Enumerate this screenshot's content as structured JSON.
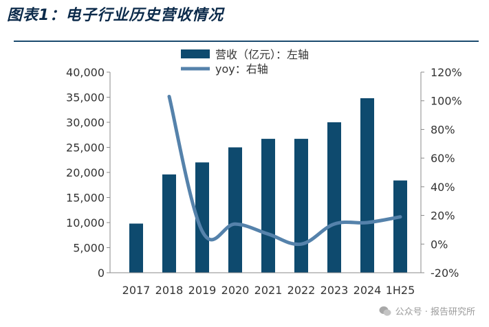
{
  "figure_title": "图表1：电子行业历史营收情况",
  "watermark": "公众号 · 报告研究所",
  "colors": {
    "bar": "#0e4a6e",
    "line": "#5582ab",
    "axis": "#888888",
    "rule": "#1a4a6e"
  },
  "chart_data": {
    "type": "bar+line",
    "categories": [
      "2017",
      "2018",
      "2019",
      "2020",
      "2021",
      "2022",
      "2023",
      "2024",
      "1H25"
    ],
    "series": [
      {
        "name": "营收（亿元）：左轴",
        "type": "bar",
        "axis": "left",
        "values": [
          9800,
          19600,
          22000,
          25000,
          26700,
          26700,
          30000,
          34800,
          18400
        ]
      },
      {
        "name": "yoy：右轴",
        "type": "line",
        "axis": "right",
        "values": [
          null,
          103,
          9,
          14,
          7,
          0,
          14,
          15,
          19
        ]
      }
    ],
    "left_axis": {
      "min": 0,
      "max": 40000,
      "step": 5000,
      "tick_labels": [
        "0",
        "5,000",
        "10,000",
        "15,000",
        "20,000",
        "25,000",
        "30,000",
        "35,000",
        "40,000"
      ]
    },
    "right_axis": {
      "min": -20,
      "max": 120,
      "step": 20,
      "tick_labels": [
        "-20%",
        "0%",
        "20%",
        "40%",
        "60%",
        "80%",
        "100%",
        "120%"
      ]
    },
    "legend_position": "top-center",
    "grid": false
  }
}
